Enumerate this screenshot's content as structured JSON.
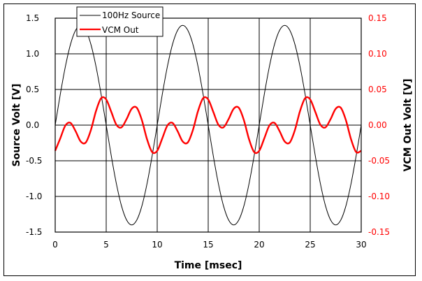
{
  "chart_data": {
    "type": "line",
    "title": "",
    "xlabel": "Time [msec]",
    "ylabel": "Source Volt [V]",
    "y2label": "VCM Out Volt [V]",
    "xlim": [
      0,
      30
    ],
    "ylim": [
      -1.5,
      1.5
    ],
    "y2lim": [
      -0.15,
      0.15
    ],
    "grid": true,
    "legend_position": "upper-left inside",
    "x_ticks": [
      "0",
      "5",
      "10",
      "15",
      "20",
      "25",
      "30"
    ],
    "y_ticks": [
      "1.5",
      "1.0",
      "0.5",
      "0.0",
      "-0.5",
      "-1.0",
      "-1.5"
    ],
    "y2_ticks": [
      "0.15",
      "0.10",
      "0.05",
      "0.00",
      "-0.05",
      "-0.10",
      "-0.15"
    ],
    "x": [
      0,
      0.5,
      1,
      1.5,
      2,
      2.5,
      3,
      3.5,
      4,
      4.5,
      5,
      5.5,
      6,
      6.5,
      7,
      7.5,
      8,
      8.5,
      9,
      9.5,
      10,
      10.5,
      11,
      11.5,
      12,
      12.5,
      13,
      13.5,
      14,
      14.5,
      15,
      15.5,
      16,
      16.5,
      17,
      17.5,
      18,
      18.5,
      19,
      19.5,
      20,
      20.5,
      21,
      21.5,
      22,
      22.5,
      23,
      23.5,
      24,
      24.5,
      25,
      25.5,
      26,
      26.5,
      27,
      27.5,
      28,
      28.5,
      29,
      29.5,
      30
    ],
    "series": [
      {
        "name": "100Hz Source",
        "axis": "left",
        "color": "#000000",
        "values": [
          0,
          0.433,
          0.823,
          1.133,
          1.331,
          1.4,
          1.331,
          1.133,
          0.823,
          0.433,
          0,
          -0.433,
          -0.823,
          -1.133,
          -1.331,
          -1.4,
          -1.331,
          -1.133,
          -0.823,
          -0.433,
          0,
          0.433,
          0.823,
          1.133,
          1.331,
          1.4,
          1.331,
          1.133,
          0.823,
          0.433,
          0,
          -0.433,
          -0.823,
          -1.133,
          -1.331,
          -1.4,
          -1.331,
          -1.133,
          -0.823,
          -0.433,
          0,
          0.433,
          0.823,
          1.133,
          1.331,
          1.4,
          1.331,
          1.133,
          0.823,
          0.433,
          0,
          -0.433,
          -0.823,
          -1.133,
          -1.331,
          -1.4,
          -1.331,
          -1.133,
          -0.823,
          -0.433,
          0
        ]
      },
      {
        "name": "VCM Out",
        "axis": "right",
        "color": "#ff0000",
        "values": [
          -0.036,
          -0.0185,
          -0.0005,
          0.0031,
          -0.0085,
          -0.023,
          -0.0243,
          -0.0069,
          0.0197,
          0.0377,
          0.036,
          0.0185,
          0.0005,
          -0.0031,
          0.0085,
          0.023,
          0.0243,
          0.0069,
          -0.0197,
          -0.0377,
          -0.036,
          -0.0185,
          -0.0005,
          0.0031,
          -0.0085,
          -0.023,
          -0.0243,
          -0.0069,
          0.0197,
          0.0377,
          0.036,
          0.0185,
          0.0005,
          -0.0031,
          0.0085,
          0.023,
          0.0243,
          0.0069,
          -0.0197,
          -0.0377,
          -0.036,
          -0.0185,
          -0.0005,
          0.0031,
          -0.0085,
          -0.023,
          -0.0243,
          -0.0069,
          0.0197,
          0.0377,
          0.036,
          0.0185,
          0.0005,
          -0.0031,
          0.0085,
          0.023,
          0.0243,
          0.0069,
          -0.0197,
          -0.0377,
          -0.036
        ]
      }
    ]
  },
  "colors": {
    "axis_right_text": "#ff0000",
    "grid": "#000000"
  }
}
